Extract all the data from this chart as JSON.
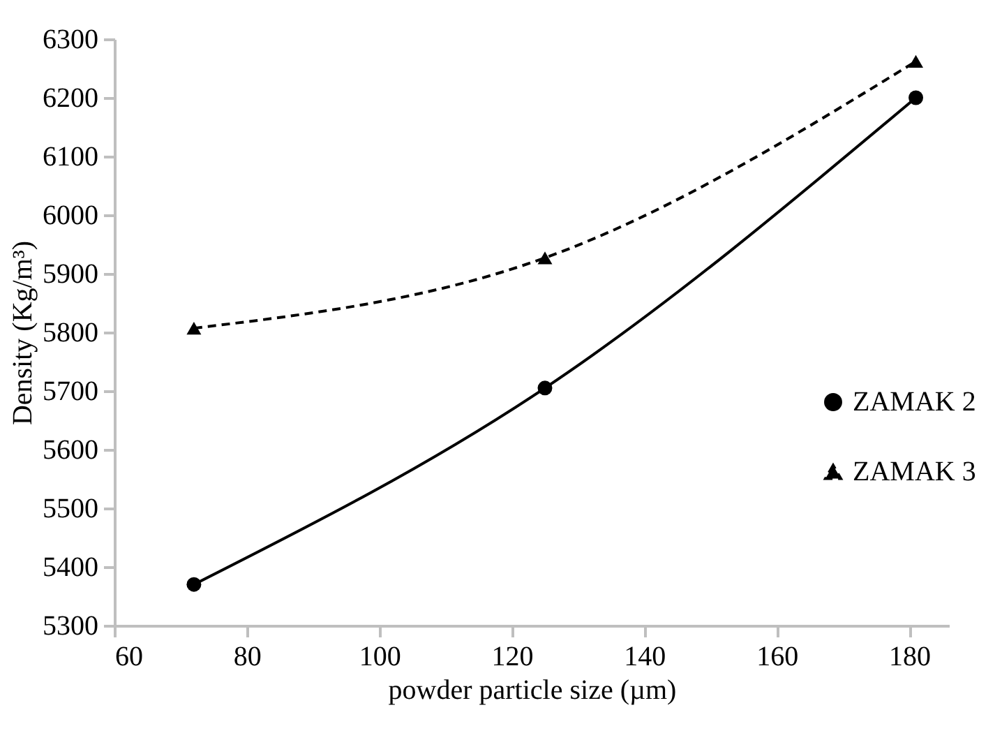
{
  "chart_data": {
    "type": "line",
    "xlabel": "powder particle size (µm)",
    "ylabel": "Density (Kg/m³)",
    "xlim": [
      60,
      186
    ],
    "xticks": [
      60,
      80,
      100,
      120,
      140,
      160,
      180
    ],
    "ylim": [
      5300,
      6300
    ],
    "yticks": [
      5300,
      5400,
      5500,
      5600,
      5700,
      5800,
      5900,
      6000,
      6100,
      6200,
      6300
    ],
    "x": [
      72,
      125,
      181
    ],
    "series": [
      {
        "name": "ZAMAK 2",
        "color": "#000000",
        "values": [
          5370,
          5705,
          6200
        ],
        "marker": "circle",
        "line_style": "solid"
      },
      {
        "name": "ZAMAK 3",
        "color": "#000000",
        "values": [
          5807,
          5927,
          6262
        ],
        "marker": "triangle",
        "line_style": "dashed"
      }
    ],
    "legend": "right",
    "grid": false
  }
}
